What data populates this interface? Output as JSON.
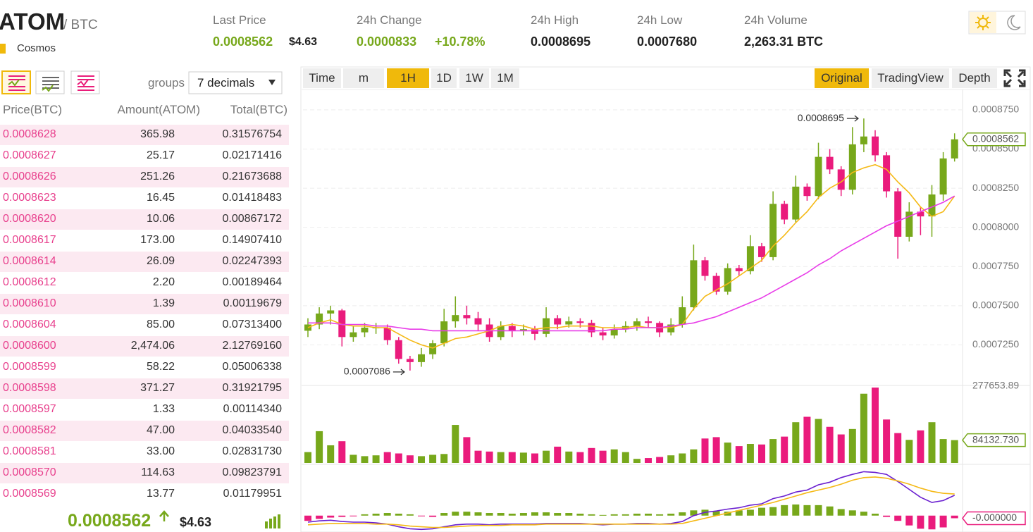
{
  "header": {
    "pair": "ATOM",
    "quote": "/ BTC",
    "name": "Cosmos",
    "stats": [
      {
        "label": "Last Price",
        "value": "0.0008562",
        "extra": "$4.63"
      },
      {
        "label": "24h Change",
        "value": "0.0000833",
        "extra": "+10.78%"
      },
      {
        "label": "24h High",
        "value": "0.0008695"
      },
      {
        "label": "24h Low",
        "value": "0.0007680"
      },
      {
        "label": "24h Volume",
        "value": "2,263.31 BTC"
      }
    ]
  },
  "orderbook": {
    "groups_label": "groups",
    "decimals": "7 decimals",
    "columns": [
      "Price(BTC)",
      "Amount(ATOM)",
      "Total(BTC)"
    ],
    "rows": [
      [
        "0.0008628",
        "365.98",
        "0.31576754"
      ],
      [
        "0.0008627",
        "25.17",
        "0.02171416"
      ],
      [
        "0.0008626",
        "251.26",
        "0.21673688"
      ],
      [
        "0.0008623",
        "16.45",
        "0.01418483"
      ],
      [
        "0.0008620",
        "10.06",
        "0.00867172"
      ],
      [
        "0.0008617",
        "173.00",
        "0.14907410"
      ],
      [
        "0.0008614",
        "26.09",
        "0.02247393"
      ],
      [
        "0.0008612",
        "2.20",
        "0.00189464"
      ],
      [
        "0.0008610",
        "1.39",
        "0.00119679"
      ],
      [
        "0.0008604",
        "85.00",
        "0.07313400"
      ],
      [
        "0.0008600",
        "2,474.06",
        "2.12769160"
      ],
      [
        "0.0008599",
        "58.22",
        "0.05006338"
      ],
      [
        "0.0008598",
        "371.27",
        "0.31921795"
      ],
      [
        "0.0008597",
        "1.33",
        "0.00114340"
      ],
      [
        "0.0008582",
        "47.00",
        "0.04033540"
      ],
      [
        "0.0008581",
        "33.00",
        "0.02831730"
      ],
      [
        "0.0008570",
        "114.63",
        "0.09823791"
      ],
      [
        "0.0008569",
        "13.77",
        "0.01179951"
      ]
    ],
    "last_price": "0.0008562",
    "last_usd": "$4.63"
  },
  "toolbar": {
    "intervals": [
      "Time",
      "m",
      "1H",
      "1D",
      "1W",
      "1M"
    ],
    "active_interval": "1H",
    "views": [
      "Original",
      "TradingView",
      "Depth"
    ],
    "active_view": "Original"
  },
  "chart_data": {
    "type": "candlestick",
    "up_color": "#77a81b",
    "down_color": "#ea1b7c",
    "ylim": [
      0.0007,
      0.000888
    ],
    "yticks": [
      {
        "value": 0.000725,
        "label": "0.0007250"
      },
      {
        "value": 0.00075,
        "label": "0.0007500"
      },
      {
        "value": 0.000775,
        "label": "0.0007750"
      },
      {
        "value": 0.0008,
        "label": "0.0008000"
      },
      {
        "value": 0.000825,
        "label": "0.0008250"
      },
      {
        "value": 0.00085,
        "label": "0.0008500"
      },
      {
        "value": 0.000875,
        "label": "0.0008750"
      }
    ],
    "grid": true,
    "ohlc": [
      [
        0.000734,
        0.000742,
        0.00073,
        0.000738
      ],
      [
        0.000738,
        0.000749,
        0.000735,
        0.000745
      ],
      [
        0.000745,
        0.00075,
        0.000738,
        0.000747
      ],
      [
        0.000747,
        0.000748,
        0.000724,
        0.00073
      ],
      [
        0.00073,
        0.000737,
        0.000727,
        0.000733
      ],
      [
        0.000733,
        0.000739,
        0.00073,
        0.000736
      ],
      [
        0.000736,
        0.000739,
        0.000732,
        0.000736
      ],
      [
        0.000736,
        0.000738,
        0.000725,
        0.000728
      ],
      [
        0.000728,
        0.00073,
        0.000713,
        0.000716
      ],
      [
        0.000716,
        0.000718,
        0.0007086,
        0.000714
      ],
      [
        0.000714,
        0.000723,
        0.000711,
        0.000719
      ],
      [
        0.000719,
        0.000728,
        0.000716,
        0.000726
      ],
      [
        0.000726,
        0.000748,
        0.000724,
        0.00074
      ],
      [
        0.00074,
        0.000756,
        0.000736,
        0.000744
      ],
      [
        0.000744,
        0.00075,
        0.000738,
        0.000742
      ],
      [
        0.000742,
        0.000746,
        0.000734,
        0.000738
      ],
      [
        0.000738,
        0.000742,
        0.000727,
        0.00073
      ],
      [
        0.00073,
        0.00074,
        0.000728,
        0.000737
      ],
      [
        0.000737,
        0.000739,
        0.00073,
        0.000734
      ],
      [
        0.000734,
        0.000738,
        0.000731,
        0.000735
      ],
      [
        0.000735,
        0.000737,
        0.000728,
        0.000732
      ],
      [
        0.000732,
        0.000749,
        0.00073,
        0.000742
      ],
      [
        0.000742,
        0.000744,
        0.000735,
        0.000738
      ],
      [
        0.000738,
        0.000743,
        0.000736,
        0.00074
      ],
      [
        0.00074,
        0.000742,
        0.000736,
        0.000739
      ],
      [
        0.000739,
        0.000741,
        0.00073,
        0.000733
      ],
      [
        0.000733,
        0.000736,
        0.000728,
        0.000731
      ],
      [
        0.000731,
        0.000738,
        0.000729,
        0.000735
      ],
      [
        0.000735,
        0.00074,
        0.000733,
        0.000737
      ],
      [
        0.000737,
        0.000742,
        0.000734,
        0.00074
      ],
      [
        0.00074,
        0.000743,
        0.000736,
        0.000739
      ],
      [
        0.000739,
        0.00074,
        0.00073,
        0.000733
      ],
      [
        0.000733,
        0.000742,
        0.000731,
        0.000738
      ],
      [
        0.000738,
        0.000756,
        0.000736,
        0.000749
      ],
      [
        0.000749,
        0.000789,
        0.000747,
        0.000779
      ],
      [
        0.000779,
        0.000781,
        0.000766,
        0.000769
      ],
      [
        0.000769,
        0.000771,
        0.000757,
        0.000759
      ],
      [
        0.000759,
        0.000777,
        0.000757,
        0.000774
      ],
      [
        0.000774,
        0.000776,
        0.000769,
        0.000772
      ],
      [
        0.000772,
        0.000795,
        0.00077,
        0.000788
      ],
      [
        0.000788,
        0.00079,
        0.000778,
        0.000781
      ],
      [
        0.000781,
        0.000823,
        0.000779,
        0.000815
      ],
      [
        0.000815,
        0.000817,
        0.000802,
        0.000805
      ],
      [
        0.000805,
        0.000833,
        0.000803,
        0.000826
      ],
      [
        0.000826,
        0.000828,
        0.000817,
        0.00082
      ],
      [
        0.00082,
        0.000854,
        0.000818,
        0.000845
      ],
      [
        0.000845,
        0.00085,
        0.000834,
        0.000837
      ],
      [
        0.000837,
        0.000839,
        0.00082,
        0.000824
      ],
      [
        0.000824,
        0.000864,
        0.000821,
        0.000853
      ],
      [
        0.000853,
        0.0008695,
        0.000848,
        0.000858
      ],
      [
        0.000858,
        0.000862,
        0.000842,
        0.000846
      ],
      [
        0.000846,
        0.000848,
        0.000819,
        0.000823
      ],
      [
        0.000823,
        0.000825,
        0.00078,
        0.000794
      ],
      [
        0.000794,
        0.000816,
        0.000791,
        0.00081
      ],
      [
        0.00081,
        0.000813,
        0.000795,
        0.000807
      ],
      [
        0.000807,
        0.000827,
        0.000794,
        0.000821
      ],
      [
        0.000821,
        0.000848,
        0.000817,
        0.000844
      ],
      [
        0.000844,
        0.00086,
        0.000842,
        0.0008562
      ]
    ],
    "ma": [
      {
        "color": "#f5b915",
        "values": [
          0.000736,
          0.000739,
          0.000741,
          0.000738,
          0.000737,
          0.000737,
          0.000736,
          0.000736,
          0.000732,
          0.000728,
          0.000725,
          0.000723,
          0.000726,
          0.000729,
          0.00073,
          0.000732,
          0.000734,
          0.000737,
          0.000738,
          0.000737,
          0.000735,
          0.000736,
          0.000736,
          0.000737,
          0.000737,
          0.000737,
          0.000736,
          0.000736,
          0.000736,
          0.000737,
          0.000736,
          0.000736,
          0.000736,
          0.000738,
          0.000748,
          0.000756,
          0.00076,
          0.000764,
          0.000769,
          0.000774,
          0.000779,
          0.000788,
          0.000795,
          0.000803,
          0.00081,
          0.000819,
          0.000825,
          0.000829,
          0.000835,
          0.000838,
          0.00084,
          0.000837,
          0.000829,
          0.000822,
          0.000813,
          0.000807,
          0.00081,
          0.00082
        ]
      },
      {
        "color": "#e83ce8",
        "values": [
          0.000739,
          0.000739,
          0.000739,
          0.000738,
          0.000738,
          0.000738,
          0.000737,
          0.000737,
          0.000736,
          0.000735,
          0.000735,
          0.000734,
          0.000734,
          0.000734,
          0.000734,
          0.000734,
          0.000734,
          0.000734,
          0.000734,
          0.000734,
          0.000734,
          0.000734,
          0.000734,
          0.000734,
          0.000734,
          0.000734,
          0.000734,
          0.000735,
          0.000735,
          0.000736,
          0.000736,
          0.000736,
          0.000737,
          0.000738,
          0.000739,
          0.000741,
          0.000743,
          0.000746,
          0.000749,
          0.000752,
          0.000755,
          0.000759,
          0.000763,
          0.000767,
          0.000771,
          0.000776,
          0.00078,
          0.000785,
          0.000789,
          0.000793,
          0.000797,
          0.000801,
          0.000804,
          0.000807,
          0.00081,
          0.000813,
          0.000816,
          0.00082
        ]
      }
    ],
    "price_tag_label": "0.0008562",
    "high_label": "0.0008695",
    "low_label": "0.0007086",
    "volume": {
      "ylim": [
        0,
        277653.89
      ],
      "yticks": [
        277653.89
      ],
      "tag_label": "84132.730",
      "values": [
        40000,
        117000,
        65000,
        80000,
        30000,
        25000,
        28000,
        40000,
        35000,
        28000,
        25000,
        30000,
        33000,
        140000,
        95000,
        45000,
        42000,
        40000,
        40000,
        38000,
        35000,
        45000,
        60000,
        42000,
        40000,
        55000,
        45000,
        50000,
        40000,
        15000,
        18000,
        22000,
        28000,
        35000,
        50000,
        90000,
        95000,
        75000,
        62000,
        70000,
        68000,
        88000,
        97000,
        150000,
        170000,
        162000,
        133000,
        105000,
        125000,
        255000,
        277653.89,
        160000,
        110000,
        85000,
        120000,
        150000,
        88000,
        84132.73
      ]
    },
    "macd": {
      "ylim": [
        -2.5e-06,
        7.5e-06
      ],
      "tag_label": "-0.000000",
      "lines": [
        {
          "color": "#6a1fd0",
          "values": [
            -1e-06,
            -8e-07,
            -7e-07,
            -9e-07,
            -1e-06,
            -1e-06,
            -1.1e-06,
            -1.3e-06,
            -1.7e-06,
            -2e-06,
            -2.1e-06,
            -2e-06,
            -1.7e-06,
            -1.4e-06,
            -1.3e-06,
            -1.3e-06,
            -1.4e-06,
            -1.3e-06,
            -1.3e-06,
            -1.3e-06,
            -1.3e-06,
            -1.2e-06,
            -1.2e-06,
            -1.2e-06,
            -1.2e-06,
            -1.3e-06,
            -1.4e-06,
            -1.3e-06,
            -1.3e-06,
            -1.2e-06,
            -1.2e-06,
            -1.3e-06,
            -1.2e-06,
            -9e-07,
            0.0,
            5e-07,
            7e-07,
            1e-06,
            1.2e-06,
            1.6e-06,
            1.8e-06,
            2.6e-06,
            3e-06,
            3.6e-06,
            3.9e-06,
            4.7e-06,
            5.1e-06,
            5.8e-06,
            6.3e-06,
            6.7e-06,
            6.6e-06,
            6.3e-06,
            5.2e-06,
            4e-06,
            2.8e-06,
            2e-06,
            2.3e-06,
            3.1e-06
          ]
        },
        {
          "color": "#f5b915",
          "values": [
            -1.4e-06,
            -1.3e-06,
            -1.2e-06,
            -1.2e-06,
            -1.2e-06,
            -1.2e-06,
            -1.3e-06,
            -1.3e-06,
            -1.4e-06,
            -1.6e-06,
            -1.7e-06,
            -1.8e-06,
            -1.8e-06,
            -1.7e-06,
            -1.6e-06,
            -1.5e-06,
            -1.5e-06,
            -1.5e-06,
            -1.4e-06,
            -1.4e-06,
            -1.4e-06,
            -1.3e-06,
            -1.3e-06,
            -1.3e-06,
            -1.3e-06,
            -1.3e-06,
            -1.3e-06,
            -1.3e-06,
            -1.3e-06,
            -1.3e-06,
            -1.3e-06,
            -1.3e-06,
            -1.3e-06,
            -1.2e-06,
            -8e-07,
            -4e-07,
            0.0,
            4e-07,
            8e-07,
            1.2e-06,
            1.6e-06,
            2e-06,
            2.5e-06,
            3e-06,
            3.5e-06,
            3.9e-06,
            4.3e-06,
            4.8e-06,
            5.4e-06,
            5.8e-06,
            5.9e-06,
            5.7e-06,
            5.3e-06,
            4.8e-06,
            4.2e-06,
            3.7e-06,
            3.4e-06,
            3.3e-06
          ]
        }
      ],
      "hist": [
        -8e-07,
        -5e-07,
        -3e-07,
        -2e-07,
        -1e-07,
        2e-07,
        3e-07,
        4e-07,
        3e-07,
        2e-07,
        -1e-07,
        -2e-07,
        4e-07,
        6e-07,
        6e-07,
        5e-07,
        4e-07,
        4e-07,
        3e-07,
        4e-07,
        5e-07,
        5e-07,
        4e-07,
        4e-07,
        3e-07,
        2e-07,
        1e-07,
        2e-07,
        2e-07,
        3e-07,
        3e-07,
        2e-07,
        3e-07,
        5e-07,
        8e-07,
        9e-07,
        7e-07,
        6e-07,
        8e-07,
        9e-07,
        1.2e-06,
        1.3e-06,
        1.6e-06,
        1.7e-06,
        1.6e-06,
        1.6e-06,
        1.4e-06,
        1e-06,
        8e-07,
        6e-07,
        3e-07,
        -2e-07,
        -8e-07,
        -1.5e-06,
        -2e-06,
        -2.1e-06,
        -1.8e-06,
        -4e-07
      ]
    }
  }
}
